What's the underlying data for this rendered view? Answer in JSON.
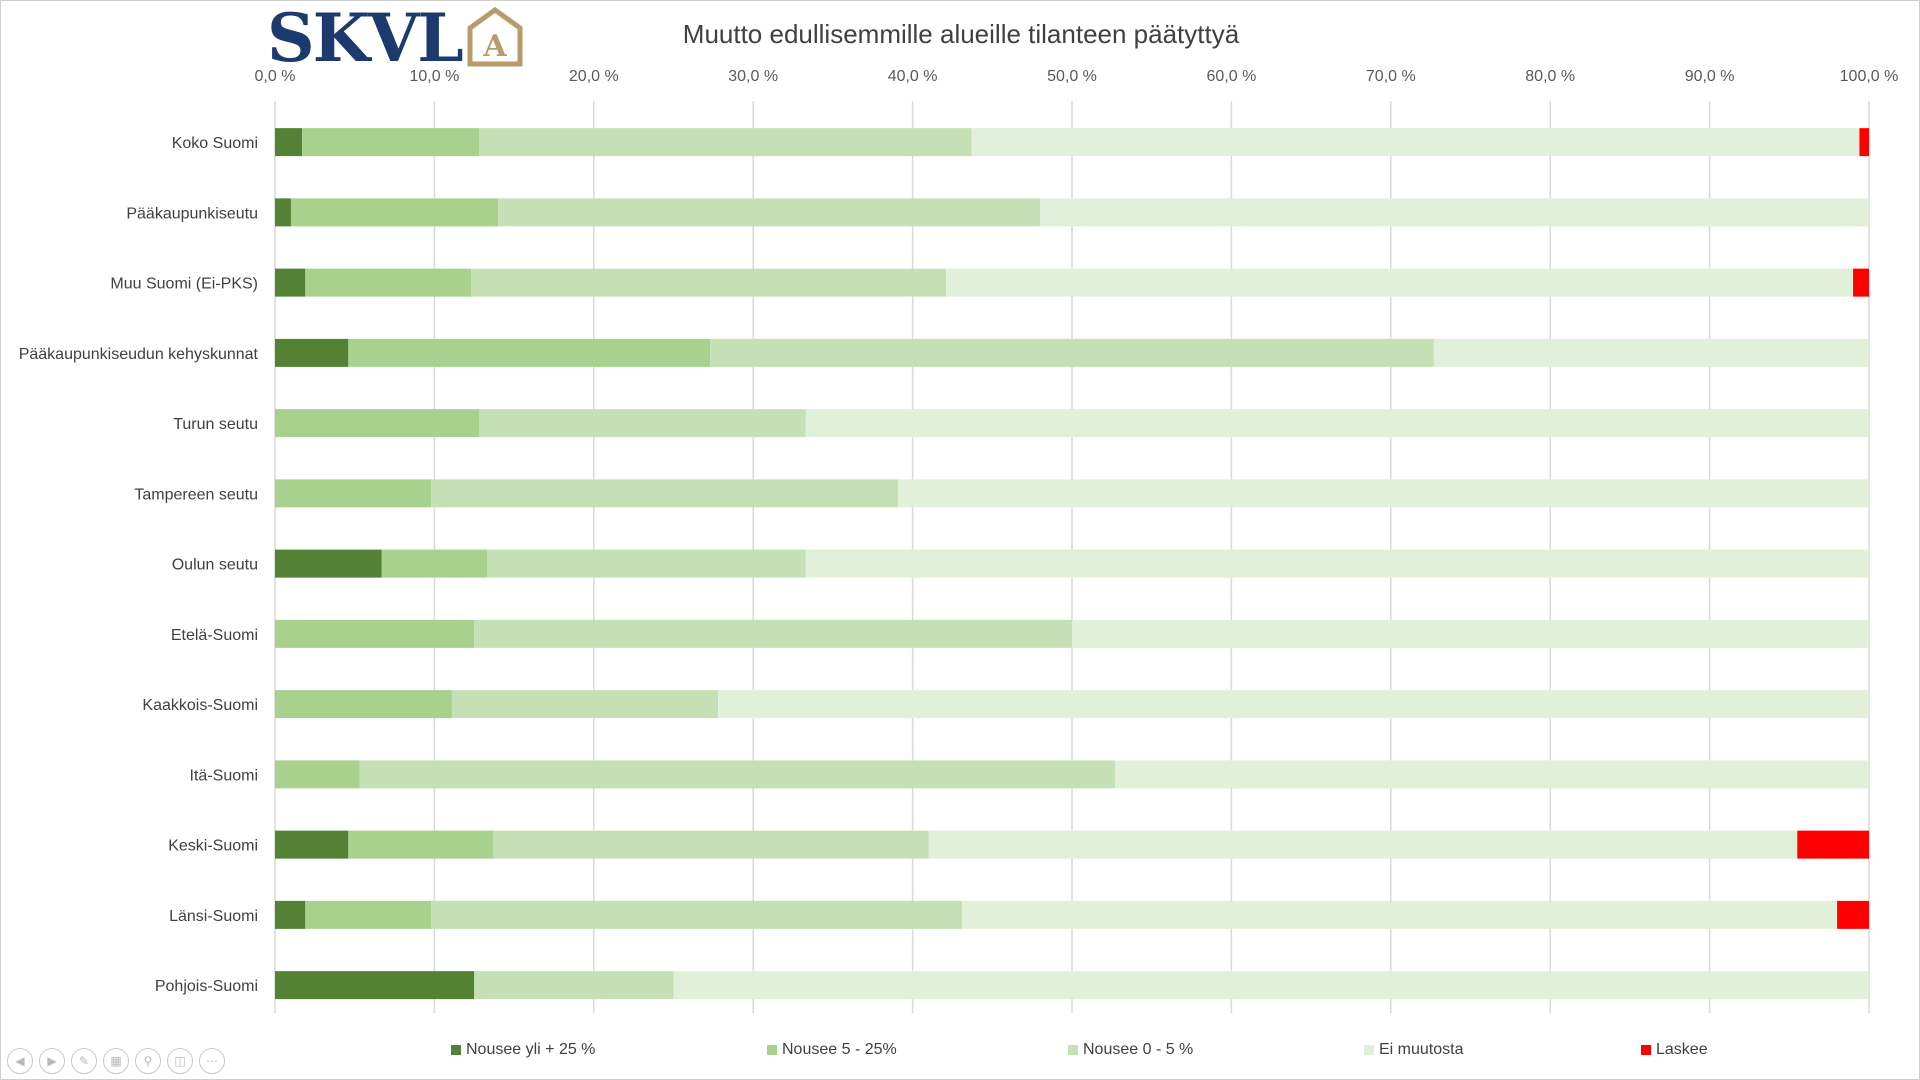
{
  "logo": {
    "text": "SKVL",
    "mark": "A"
  },
  "chart_data": {
    "type": "bar",
    "orientation": "horizontal",
    "stacked": "percent",
    "title": "Muutto edullisemmille alueille tilanteen päätyttyä",
    "x_axis_position": "top",
    "xlim": [
      0,
      100
    ],
    "xticks": [
      "0,0 %",
      "10,0 %",
      "20,0 %",
      "30,0 %",
      "40,0 %",
      "50,0 %",
      "60,0 %",
      "70,0 %",
      "80,0 %",
      "90,0 %",
      "100,0 %"
    ],
    "grid": true,
    "legend_position": "bottom",
    "categories": [
      "Koko Suomi",
      "Pääkaupunkiseutu",
      "Muu Suomi (Ei-PKS)",
      "Pääkaupunkiseudun kehyskunnat",
      "Turun seutu",
      "Tampereen seutu",
      "Oulun seutu",
      "Etelä-Suomi",
      "Kaakkois-Suomi",
      "Itä-Suomi",
      "Keski-Suomi",
      "Länsi-Suomi",
      "Pohjois-Suomi"
    ],
    "series": [
      {
        "name": "Nousee yli + 25 %",
        "color": "#548235",
        "values": [
          1.7,
          1.0,
          1.9,
          4.6,
          0,
          0,
          6.7,
          0,
          0,
          0,
          4.6,
          1.9,
          12.5
        ]
      },
      {
        "name": "Nousee 5 - 25%",
        "color": "#a9d18e",
        "values": [
          11.1,
          13.0,
          10.4,
          22.7,
          12.8,
          9.8,
          6.6,
          12.5,
          11.1,
          5.3,
          9.1,
          7.9,
          0
        ]
      },
      {
        "name": "Nousee 0 - 5 %",
        "color": "#c5e0b4",
        "values": [
          30.9,
          34.0,
          29.8,
          45.4,
          20.5,
          29.3,
          20.0,
          37.5,
          16.7,
          47.4,
          27.3,
          33.3,
          12.5
        ]
      },
      {
        "name": "Ei muutosta",
        "color": "#e2f0d9",
        "values": [
          55.7,
          52.0,
          56.9,
          27.3,
          66.7,
          60.9,
          66.7,
          50.0,
          72.2,
          47.3,
          54.5,
          54.9,
          75.0
        ]
      },
      {
        "name": "Laskee",
        "color": "#ff0000",
        "values": [
          0.6,
          0,
          1.0,
          0,
          0,
          0,
          0,
          0,
          0,
          0,
          4.5,
          2.0,
          0
        ]
      }
    ]
  }
}
